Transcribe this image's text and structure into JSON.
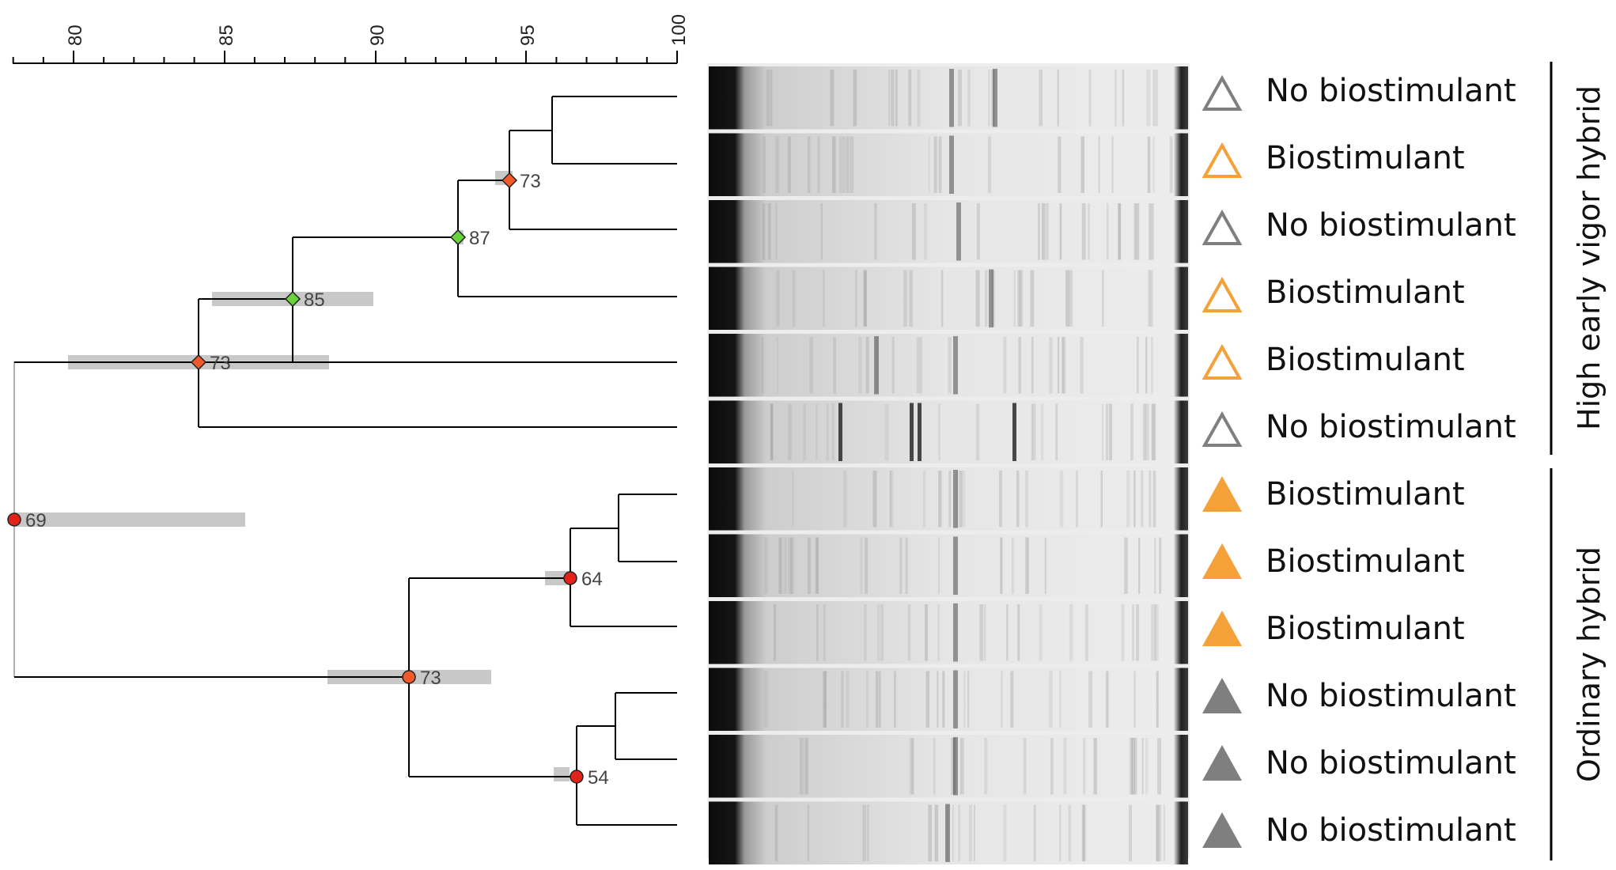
{
  "axis": {
    "ticks": [
      "80",
      "85",
      "90",
      "95",
      "100"
    ],
    "min": 78,
    "max": 100
  },
  "nodes": [
    {
      "id": "n1",
      "value": 69,
      "label": "69",
      "color": "#e2231a"
    },
    {
      "id": "n2",
      "value": 73,
      "label": "73",
      "color": "#f05a28"
    },
    {
      "id": "n3",
      "value": 85,
      "label": "85",
      "color": "#6ad23a"
    },
    {
      "id": "n4",
      "value": 87,
      "label": "87",
      "color": "#6ad23a"
    },
    {
      "id": "n5",
      "value": 73,
      "label": "73",
      "color": "#f05a28"
    },
    {
      "id": "n6",
      "value": 73,
      "label": "73",
      "color": "#f05a28"
    },
    {
      "id": "n7",
      "value": 64,
      "label": "64",
      "color": "#e2231a"
    },
    {
      "id": "n8",
      "value": 54,
      "label": "54",
      "color": "#e2231a"
    }
  ],
  "samples": [
    {
      "label": "No biostimulant",
      "marker": "hollow-triangle",
      "color": "#7f7f7f"
    },
    {
      "label": "Biostimulant",
      "marker": "hollow-triangle",
      "color": "#f5a13a"
    },
    {
      "label": "No biostimulant",
      "marker": "hollow-triangle",
      "color": "#7f7f7f"
    },
    {
      "label": "Biostimulant",
      "marker": "hollow-triangle",
      "color": "#f5a13a"
    },
    {
      "label": "Biostimulant",
      "marker": "hollow-triangle",
      "color": "#f5a13a"
    },
    {
      "label": "No biostimulant",
      "marker": "hollow-triangle",
      "color": "#7f7f7f"
    },
    {
      "label": "Biostimulant",
      "marker": "filled-triangle",
      "color": "#f5a13a"
    },
    {
      "label": "Biostimulant",
      "marker": "filled-triangle",
      "color": "#f5a13a"
    },
    {
      "label": "Biostimulant",
      "marker": "filled-triangle",
      "color": "#f5a13a"
    },
    {
      "label": "No biostimulant",
      "marker": "filled-triangle",
      "color": "#7f7f7f"
    },
    {
      "label": "No biostimulant",
      "marker": "filled-triangle",
      "color": "#7f7f7f"
    },
    {
      "label": "No biostimulant",
      "marker": "filled-triangle",
      "color": "#7f7f7f"
    }
  ],
  "groups": [
    {
      "label": "High early vigor hybrid"
    },
    {
      "label": "Ordinary hybrid"
    }
  ],
  "colors": {
    "tree_line": "#000000",
    "error_bar": "#c8c8c8",
    "gel_background": "#eeeeee",
    "gel_dark": "#111111"
  }
}
